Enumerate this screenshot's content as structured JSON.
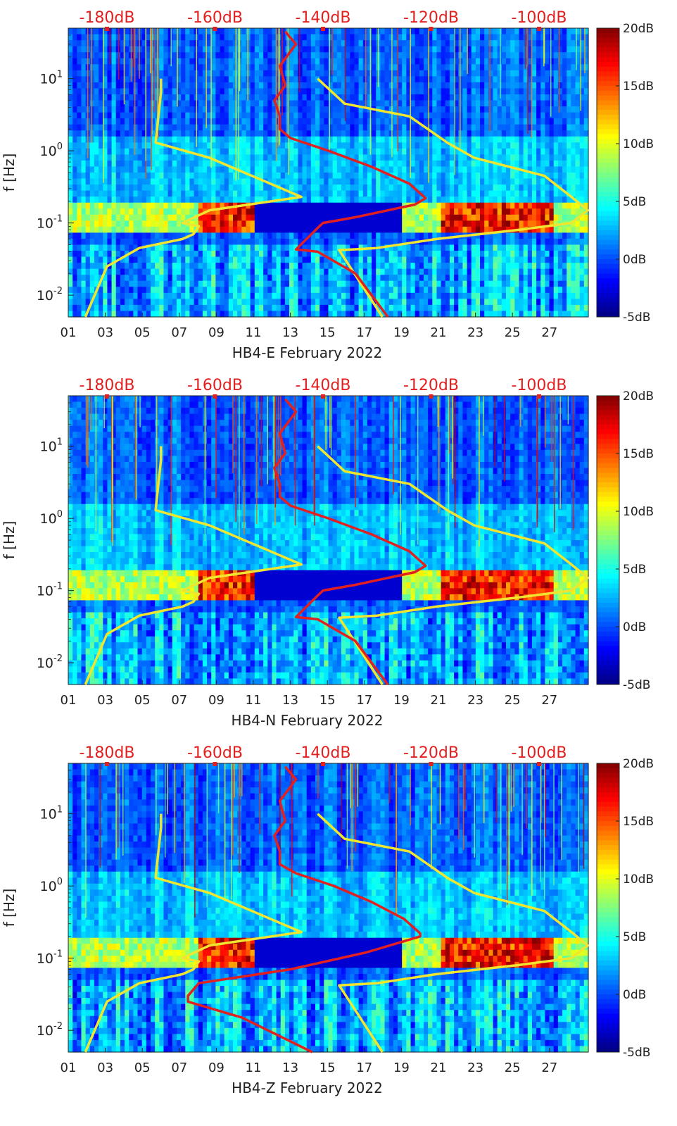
{
  "chart_data": [
    {
      "type": "heatmap",
      "xlabel": "HB4-E February 2022",
      "ylabel": "f [Hz]",
      "x_ticks": [
        "01",
        "03",
        "05",
        "07",
        "09",
        "11",
        "13",
        "15",
        "17",
        "19",
        "21",
        "23",
        "25",
        "27"
      ],
      "y_ticks": [
        "10^-2",
        "10^-1",
        "10^0",
        "10^1"
      ],
      "ylim": [
        0.005,
        50
      ],
      "xlim": [
        1,
        29
      ],
      "y_scale": "log",
      "top_axis_ticks": [
        "-180dB",
        "-160dB",
        "-140dB",
        "-120dB",
        "-100dB"
      ],
      "top_axis_values": [
        -180,
        -160,
        -140,
        -120,
        -100
      ],
      "colorbar_ticks": [
        "20dB",
        "15dB",
        "10dB",
        "5dB",
        "0dB",
        "-5dB"
      ],
      "colorbar_values": [
        20,
        15,
        10,
        5,
        0,
        -5
      ],
      "colorbar_range": [
        -5,
        20
      ],
      "colormap": "jet",
      "overlay_series": [
        {
          "color": "#f0e630",
          "x_dB": [
            -170,
            -170,
            -171,
            -161,
            -144,
            -161,
            -166,
            -163,
            -164,
            -166,
            -174,
            -180,
            -184
          ],
          "y_hz": [
            10,
            6.5,
            1.3,
            0.8,
            0.23,
            0.15,
            0.1,
            0.09,
            0.07,
            0.06,
            0.045,
            0.025,
            0.005
          ]
        },
        {
          "color": "#f0e630",
          "x_dB": [
            -141,
            -136,
            -124,
            -117,
            -112,
            -99,
            -94,
            -91,
            -94,
            -104,
            -119,
            -130,
            -137,
            -129
          ],
          "y_hz": [
            10,
            4.5,
            3,
            1.3,
            0.8,
            0.45,
            0.23,
            0.15,
            0.1,
            0.08,
            0.06,
            0.045,
            0.042,
            0.005
          ]
        },
        {
          "color": "#e32020",
          "x_dB": [
            -147,
            -145,
            -148,
            -147,
            -149,
            -148,
            -148,
            -146,
            -139,
            -131,
            -124,
            -121,
            -123,
            -134,
            -140,
            -141,
            -145,
            -141,
            -134,
            -128
          ],
          "y_hz": [
            45,
            30,
            15,
            8,
            5,
            3,
            2,
            1.5,
            1.0,
            0.6,
            0.35,
            0.22,
            0.18,
            0.12,
            0.1,
            0.085,
            0.043,
            0.04,
            0.02,
            0.005
          ]
        }
      ]
    },
    {
      "type": "heatmap",
      "xlabel": "HB4-N February 2022",
      "ylabel": "f [Hz]",
      "x_ticks": [
        "01",
        "03",
        "05",
        "07",
        "09",
        "11",
        "13",
        "15",
        "17",
        "19",
        "21",
        "23",
        "25",
        "27"
      ],
      "y_ticks": [
        "10^-2",
        "10^-1",
        "10^0",
        "10^1"
      ],
      "ylim": [
        0.005,
        50
      ],
      "xlim": [
        1,
        29
      ],
      "y_scale": "log",
      "top_axis_ticks": [
        "-180dB",
        "-160dB",
        "-140dB",
        "-120dB",
        "-100dB"
      ],
      "top_axis_values": [
        -180,
        -160,
        -140,
        -120,
        -100
      ],
      "colorbar_ticks": [
        "20dB",
        "15dB",
        "10dB",
        "5dB",
        "0dB",
        "-5dB"
      ],
      "colorbar_values": [
        20,
        15,
        10,
        5,
        0,
        -5
      ],
      "colorbar_range": [
        -5,
        20
      ],
      "colormap": "jet",
      "overlay_series": [
        {
          "color": "#f0e630",
          "x_dB": [
            -170,
            -170,
            -171,
            -161,
            -144,
            -161,
            -166,
            -163,
            -164,
            -166,
            -174,
            -180,
            -184
          ],
          "y_hz": [
            10,
            6.5,
            1.3,
            0.8,
            0.23,
            0.15,
            0.1,
            0.09,
            0.07,
            0.06,
            0.045,
            0.025,
            0.005
          ]
        },
        {
          "color": "#f0e630",
          "x_dB": [
            -141,
            -136,
            -124,
            -117,
            -112,
            -99,
            -94,
            -91,
            -94,
            -104,
            -119,
            -130,
            -137,
            -129
          ],
          "y_hz": [
            10,
            4.5,
            3,
            1.3,
            0.8,
            0.45,
            0.23,
            0.15,
            0.1,
            0.08,
            0.06,
            0.045,
            0.042,
            0.005
          ]
        },
        {
          "color": "#e32020",
          "x_dB": [
            -147,
            -145,
            -148,
            -147,
            -149,
            -148,
            -148,
            -146,
            -139,
            -131,
            -124,
            -121,
            -123,
            -134,
            -140,
            -141,
            -145,
            -141,
            -134,
            -128
          ],
          "y_hz": [
            45,
            30,
            15,
            8,
            5,
            3,
            2,
            1.5,
            1.0,
            0.6,
            0.35,
            0.22,
            0.18,
            0.12,
            0.1,
            0.085,
            0.043,
            0.04,
            0.02,
            0.005
          ]
        }
      ]
    },
    {
      "type": "heatmap",
      "xlabel": "HB4-Z February 2022",
      "ylabel": "f [Hz]",
      "x_ticks": [
        "01",
        "03",
        "05",
        "07",
        "09",
        "11",
        "13",
        "15",
        "17",
        "19",
        "21",
        "23",
        "25",
        "27"
      ],
      "y_ticks": [
        "10^-2",
        "10^-1",
        "10^0",
        "10^1"
      ],
      "ylim": [
        0.005,
        50
      ],
      "xlim": [
        1,
        29
      ],
      "y_scale": "log",
      "top_axis_ticks": [
        "-180dB",
        "-160dB",
        "-140dB",
        "-120dB",
        "-100dB"
      ],
      "top_axis_values": [
        -180,
        -160,
        -140,
        -120,
        -100
      ],
      "colorbar_ticks": [
        "20dB",
        "15dB",
        "10dB",
        "5dB",
        "0dB",
        "-5dB"
      ],
      "colorbar_values": [
        20,
        15,
        10,
        5,
        0,
        -5
      ],
      "colorbar_range": [
        -5,
        20
      ],
      "colormap": "jet",
      "overlay_series": [
        {
          "color": "#f0e630",
          "x_dB": [
            -170,
            -170,
            -171,
            -161,
            -144,
            -161,
            -166,
            -163,
            -164,
            -166,
            -174,
            -180,
            -184
          ],
          "y_hz": [
            10,
            6.5,
            1.3,
            0.8,
            0.23,
            0.15,
            0.1,
            0.09,
            0.07,
            0.06,
            0.045,
            0.025,
            0.005
          ]
        },
        {
          "color": "#f0e630",
          "x_dB": [
            -141,
            -136,
            -124,
            -117,
            -112,
            -99,
            -94,
            -91,
            -94,
            -104,
            -119,
            -130,
            -137,
            -129
          ],
          "y_hz": [
            10,
            4.5,
            3,
            1.3,
            0.8,
            0.45,
            0.23,
            0.15,
            0.1,
            0.08,
            0.06,
            0.045,
            0.042,
            0.005
          ]
        },
        {
          "color": "#e32020",
          "x_dB": [
            -147,
            -145,
            -148,
            -147,
            -149,
            -148,
            -148,
            -145,
            -138,
            -131,
            -125,
            -122,
            -122,
            -132,
            -146,
            -163,
            -165,
            -165,
            -155,
            -142
          ],
          "y_hz": [
            45,
            30,
            15,
            8,
            5,
            3,
            2,
            1.5,
            1.0,
            0.6,
            0.35,
            0.22,
            0.2,
            0.12,
            0.07,
            0.045,
            0.03,
            0.025,
            0.015,
            0.005
          ]
        }
      ]
    }
  ]
}
